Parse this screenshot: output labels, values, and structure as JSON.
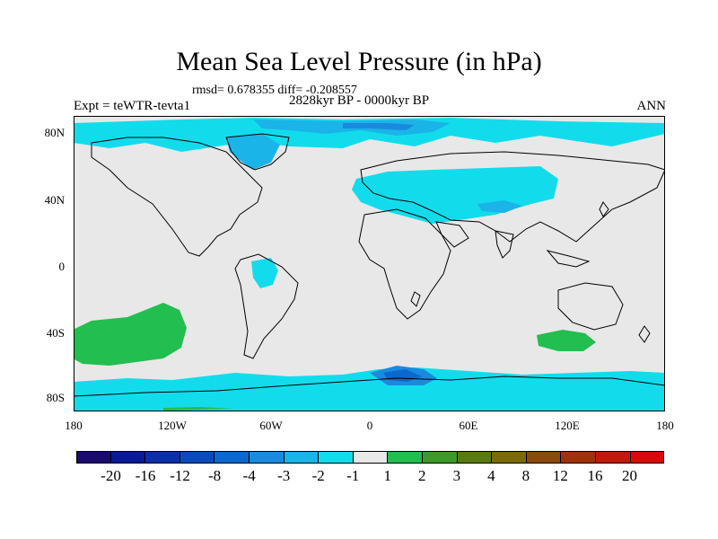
{
  "title": "Mean Sea Level Pressure (in hPa)",
  "stats_line": "rmsd= 0.678355 diff= -0.208557",
  "period_line": "2828kyr BP - 0000kyr BP",
  "left_label": "Expt = teWTR-tevta1",
  "right_label": "ANN",
  "lat_ticks": [
    "80N",
    "40N",
    "0",
    "40S",
    "80S"
  ],
  "lon_ticks": [
    "180",
    "120W",
    "60W",
    "0",
    "60E",
    "120E",
    "180"
  ],
  "colorbar": {
    "labels": [
      "-20",
      "-16",
      "-12",
      "-8",
      "-4",
      "-3",
      "-2",
      "-1",
      "1",
      "2",
      "3",
      "4",
      "8",
      "12",
      "16",
      "20"
    ],
    "colors": [
      "#1a0a6e",
      "#0a1a96",
      "#0a2fa8",
      "#0a4bbb",
      "#0a68cf",
      "#1a8ade",
      "#1ab4e8",
      "#12dcec",
      "#e8e8e8",
      "#22be50",
      "#3e9a28",
      "#5a7a12",
      "#7a6a0a",
      "#8a4a0a",
      "#a0320a",
      "#c01a0a",
      "#d80a0a"
    ]
  },
  "colors": {
    "ocean_background": "#e8e8e8",
    "cyan": "#12dcec",
    "light_blue": "#1ab4e8",
    "blue": "#1a8ade",
    "green": "#22be50",
    "dark_green": "#3e9a28"
  }
}
